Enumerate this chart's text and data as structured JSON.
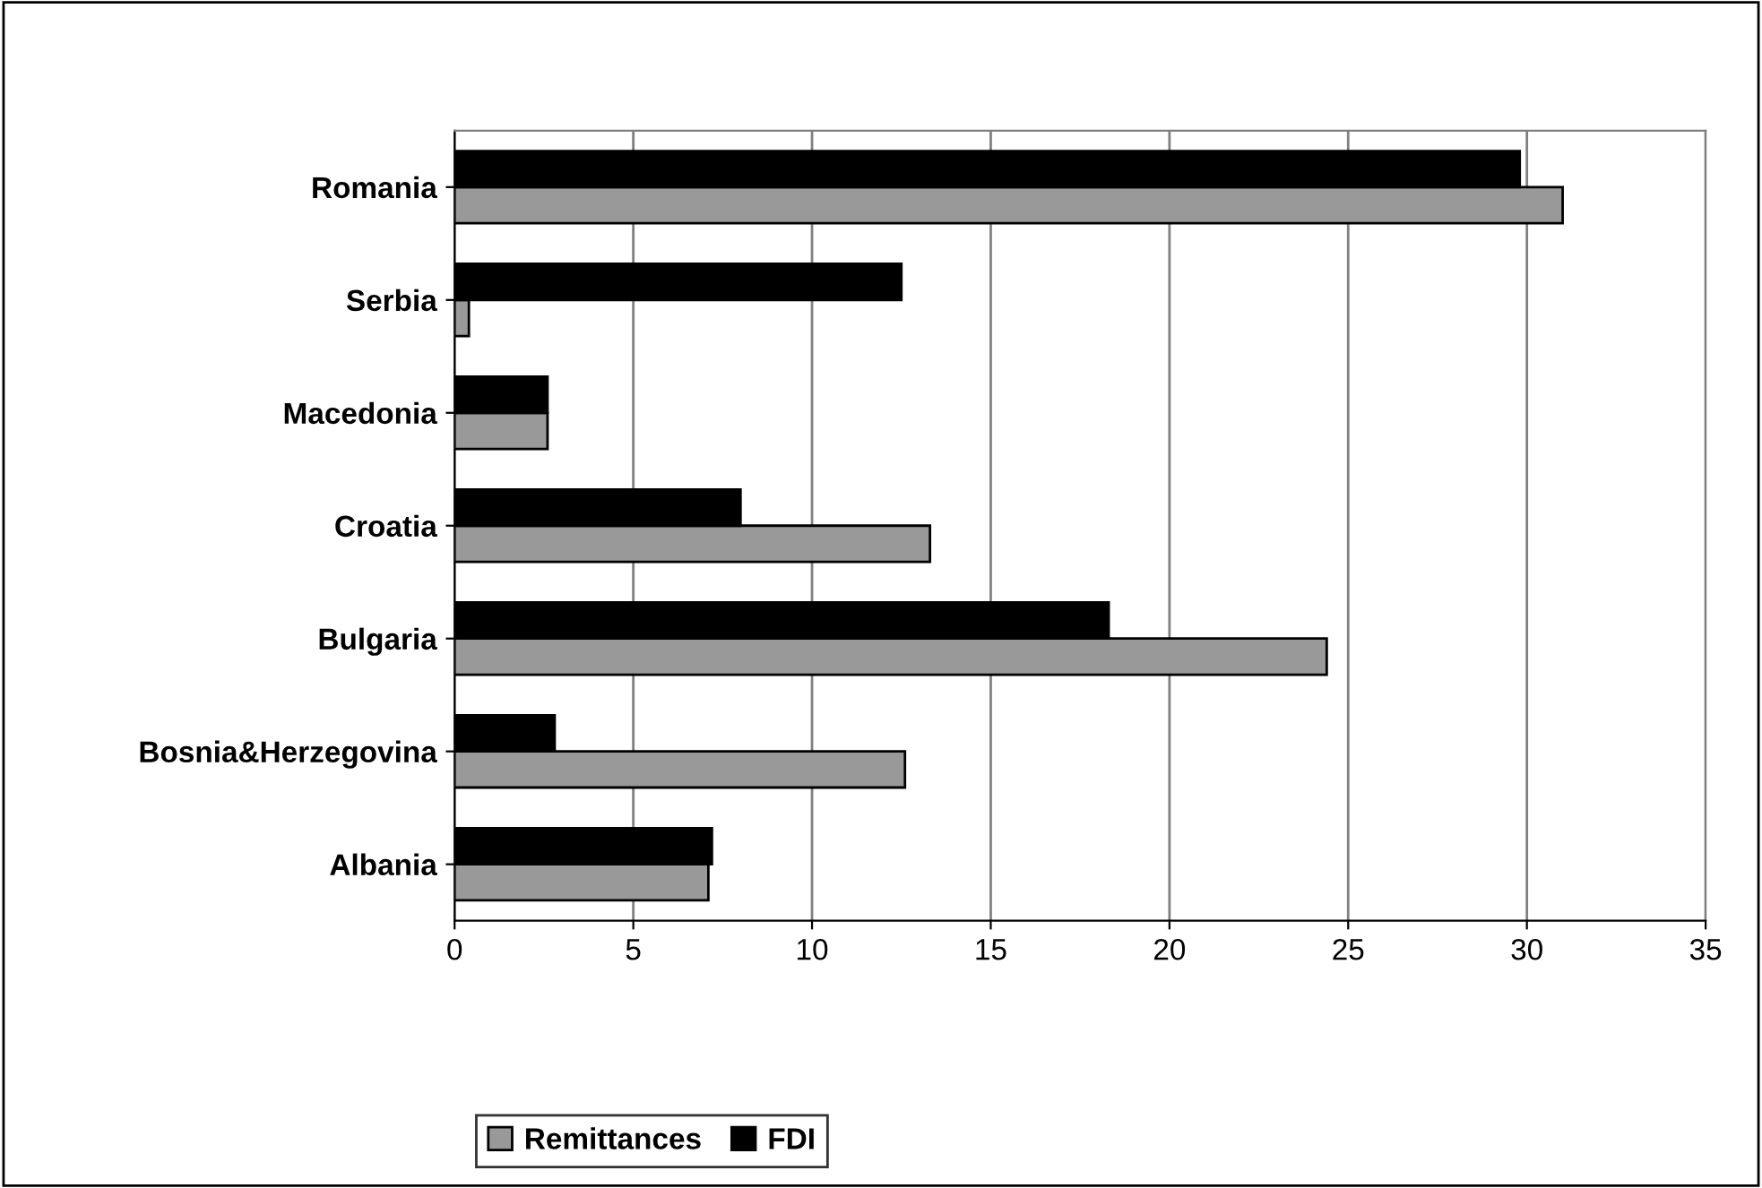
{
  "chart_data": {
    "type": "bar",
    "orientation": "horizontal",
    "categories": [
      "Romania",
      "Serbia",
      "Macedonia",
      "Croatia",
      "Bulgaria",
      "Bosnia&Herzegovina",
      "Albania"
    ],
    "series": [
      {
        "name": "Remittances",
        "color": "#999999",
        "values": [
          31.0,
          0.4,
          2.6,
          13.3,
          24.4,
          12.6,
          7.1
        ]
      },
      {
        "name": "FDI",
        "color": "#000000",
        "values": [
          29.8,
          12.5,
          2.6,
          8.0,
          18.3,
          2.8,
          7.2
        ]
      }
    ],
    "xlim": [
      0,
      35
    ],
    "xticks": [
      0,
      5,
      10,
      15,
      20,
      25,
      30,
      35
    ],
    "grid": "x",
    "legend": "bottom"
  }
}
